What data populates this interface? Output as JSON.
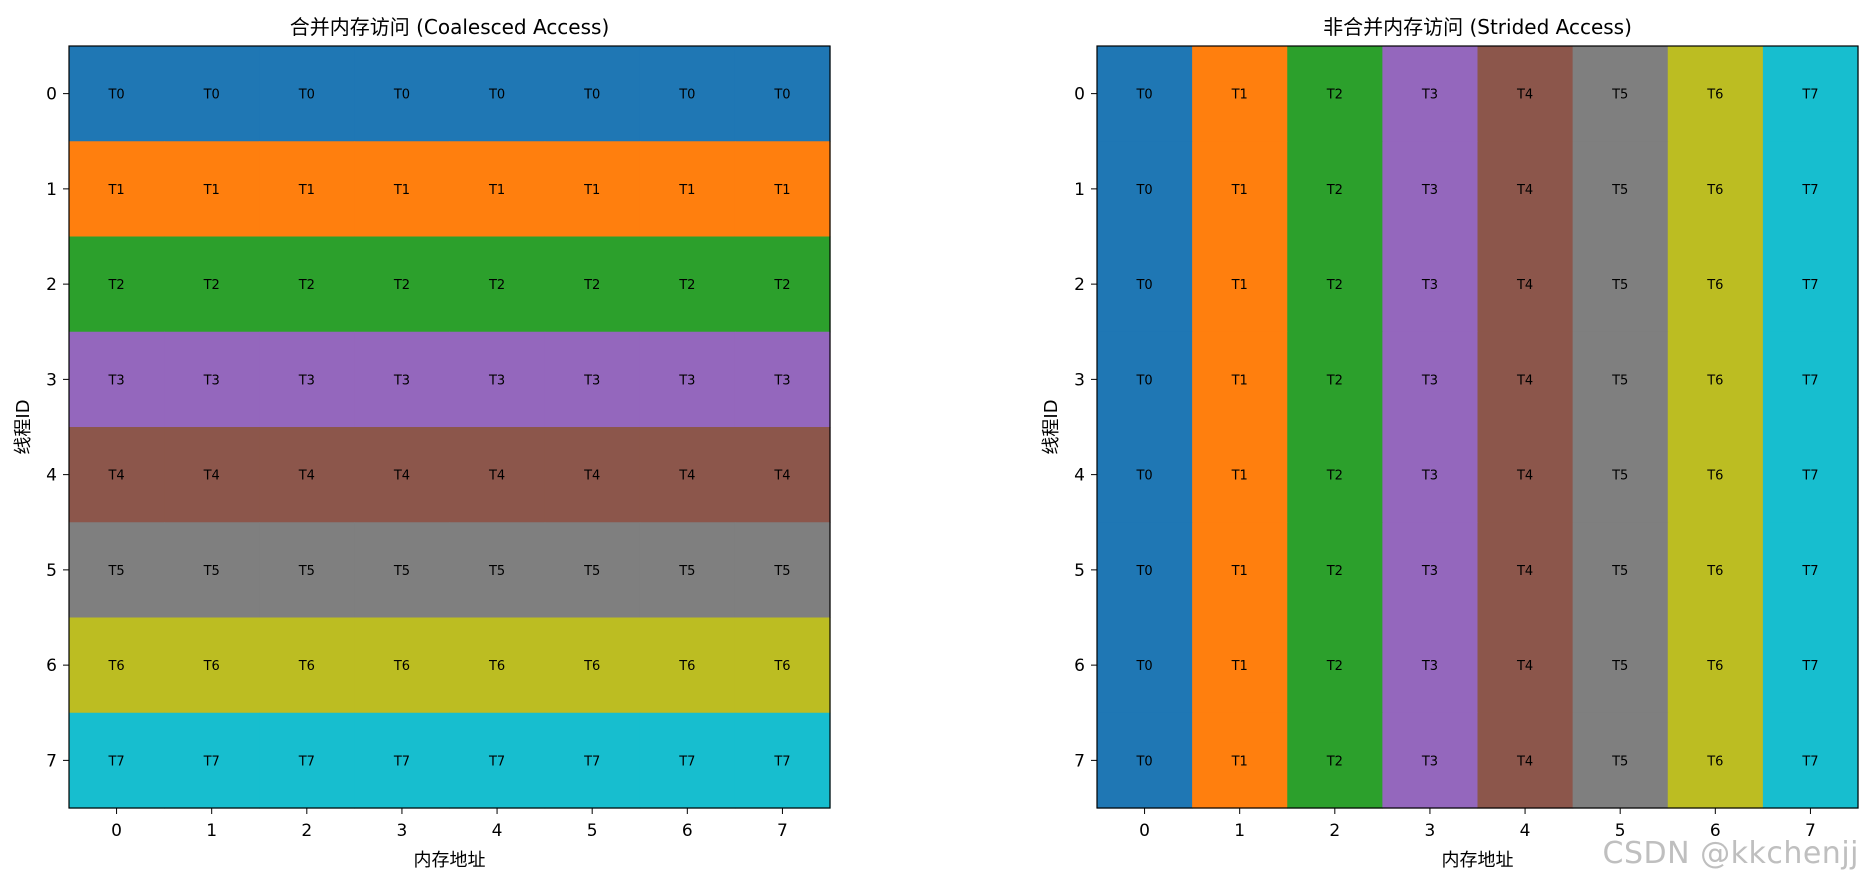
{
  "chart_data": [
    {
      "type": "heatmap",
      "title": "合并内存访问 (Coalesced Access)",
      "xlabel": "内存地址",
      "ylabel": "线程ID",
      "x_ticks": [
        "0",
        "1",
        "2",
        "3",
        "4",
        "5",
        "6",
        "7"
      ],
      "y_ticks": [
        "0",
        "1",
        "2",
        "3",
        "4",
        "5",
        "6",
        "7"
      ],
      "pattern": "row",
      "cells": [
        [
          "T0",
          "T0",
          "T0",
          "T0",
          "T0",
          "T0",
          "T0",
          "T0"
        ],
        [
          "T1",
          "T1",
          "T1",
          "T1",
          "T1",
          "T1",
          "T1",
          "T1"
        ],
        [
          "T2",
          "T2",
          "T2",
          "T2",
          "T2",
          "T2",
          "T2",
          "T2"
        ],
        [
          "T3",
          "T3",
          "T3",
          "T3",
          "T3",
          "T3",
          "T3",
          "T3"
        ],
        [
          "T4",
          "T4",
          "T4",
          "T4",
          "T4",
          "T4",
          "T4",
          "T4"
        ],
        [
          "T5",
          "T5",
          "T5",
          "T5",
          "T5",
          "T5",
          "T5",
          "T5"
        ],
        [
          "T6",
          "T6",
          "T6",
          "T6",
          "T6",
          "T6",
          "T6",
          "T6"
        ],
        [
          "T7",
          "T7",
          "T7",
          "T7",
          "T7",
          "T7",
          "T7",
          "T7"
        ]
      ]
    },
    {
      "type": "heatmap",
      "title": "非合并内存访问 (Strided Access)",
      "xlabel": "内存地址",
      "ylabel": "线程ID",
      "x_ticks": [
        "0",
        "1",
        "2",
        "3",
        "4",
        "5",
        "6",
        "7"
      ],
      "y_ticks": [
        "0",
        "1",
        "2",
        "3",
        "4",
        "5",
        "6",
        "7"
      ],
      "pattern": "column",
      "cells": [
        [
          "T0",
          "T1",
          "T2",
          "T3",
          "T4",
          "T5",
          "T6",
          "T7"
        ],
        [
          "T0",
          "T1",
          "T2",
          "T3",
          "T4",
          "T5",
          "T6",
          "T7"
        ],
        [
          "T0",
          "T1",
          "T2",
          "T3",
          "T4",
          "T5",
          "T6",
          "T7"
        ],
        [
          "T0",
          "T1",
          "T2",
          "T3",
          "T4",
          "T5",
          "T6",
          "T7"
        ],
        [
          "T0",
          "T1",
          "T2",
          "T3",
          "T4",
          "T5",
          "T6",
          "T7"
        ],
        [
          "T0",
          "T1",
          "T2",
          "T3",
          "T4",
          "T5",
          "T6",
          "T7"
        ],
        [
          "T0",
          "T1",
          "T2",
          "T3",
          "T4",
          "T5",
          "T6",
          "T7"
        ],
        [
          "T0",
          "T1",
          "T2",
          "T3",
          "T4",
          "T5",
          "T6",
          "T7"
        ]
      ]
    }
  ],
  "thread_colors": {
    "T0": "#1f77b4",
    "T1": "#ff7f0e",
    "T2": "#2ca02c",
    "T3": "#9467bd",
    "T4": "#8c564b",
    "T5": "#7f7f7f",
    "T6": "#bcbd22",
    "T7": "#17becf"
  },
  "watermark": "CSDN @kkchenjj"
}
